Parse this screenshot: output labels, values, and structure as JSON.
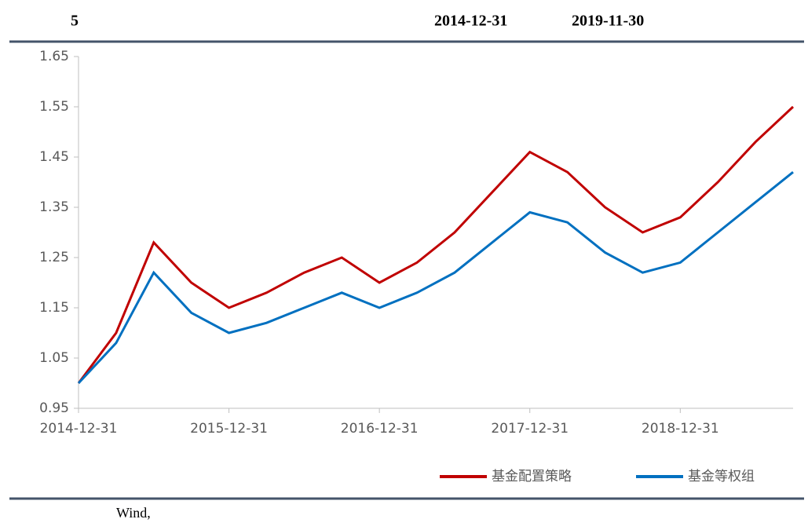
{
  "header": {
    "number": "5",
    "start_date": "2014-12-31",
    "end_date": "2019-11-30"
  },
  "chart_data": {
    "type": "line",
    "categories": [
      "2014-12-31",
      null,
      null,
      null,
      "2015-12-31",
      null,
      null,
      null,
      "2016-12-31",
      null,
      null,
      null,
      "2017-12-31",
      null,
      null,
      null,
      "2018-12-31",
      null,
      null,
      null
    ],
    "series": [
      {
        "name": "基金配置策略",
        "color": "#c00000",
        "values": [
          1.0,
          1.1,
          1.28,
          1.2,
          1.15,
          1.18,
          1.22,
          1.25,
          1.2,
          1.24,
          1.3,
          1.38,
          1.46,
          1.42,
          1.35,
          1.3,
          1.33,
          1.4,
          1.48,
          1.55
        ]
      },
      {
        "name": "基金等权组",
        "color": "#0070c0",
        "values": [
          1.0,
          1.08,
          1.22,
          1.14,
          1.1,
          1.12,
          1.15,
          1.18,
          1.15,
          1.18,
          1.22,
          1.28,
          1.34,
          1.32,
          1.26,
          1.22,
          1.24,
          1.3,
          1.36,
          1.42
        ]
      }
    ],
    "ylim": [
      0.95,
      1.65
    ],
    "yticks": [
      0.95,
      1.05,
      1.15,
      1.25,
      1.35,
      1.45,
      1.55,
      1.65
    ],
    "grid": false
  },
  "footer": {
    "source": "Wind,"
  }
}
